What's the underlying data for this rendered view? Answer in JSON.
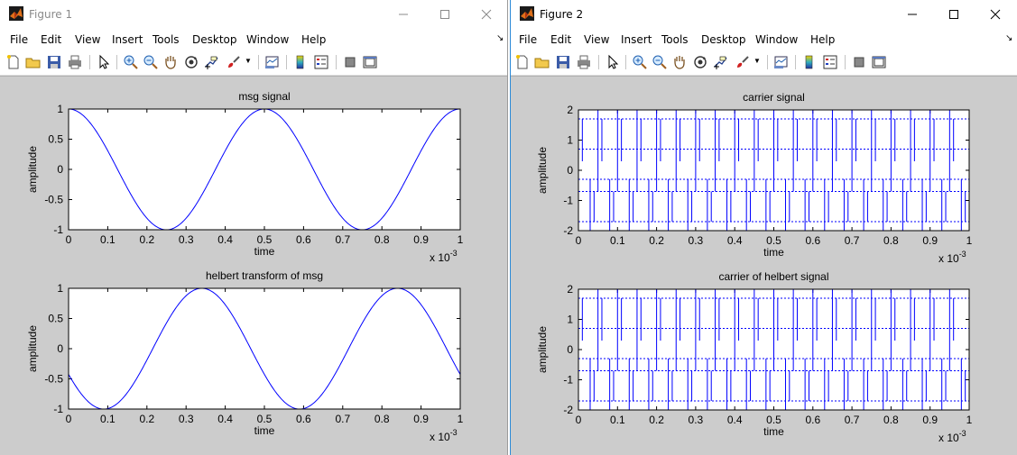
{
  "menu_labels": [
    "File",
    "Edit",
    "View",
    "Insert",
    "Tools",
    "Desktop",
    "Window",
    "Help"
  ],
  "colors": {
    "signal": "#0000ff",
    "figure_background": "#cccccc",
    "plot_background": "#ffffff"
  },
  "windows": [
    {
      "title": "Figure 1",
      "charts": [
        {
          "type": "line",
          "title": "msg signal",
          "xlabel": "time",
          "ylabel": "amplitude",
          "xlim": [
            0,
            1
          ],
          "ylim": [
            -1,
            1
          ],
          "x_exponent": "x 10-3",
          "xticks": [
            "0",
            "0.1",
            "0.2",
            "0.3",
            "0.4",
            "0.5",
            "0.6",
            "0.7",
            "0.8",
            "0.9",
            "1"
          ],
          "yticks": [
            "1",
            "0.5",
            "0",
            "-0.5",
            "-1"
          ],
          "grid": false
        },
        {
          "type": "line",
          "title": "helbert transform of msg",
          "xlabel": "time",
          "ylabel": "amplitude",
          "xlim": [
            0,
            1
          ],
          "ylim": [
            -1,
            1
          ],
          "x_exponent": "x 10-3",
          "xticks": [
            "0",
            "0.1",
            "0.2",
            "0.3",
            "0.4",
            "0.5",
            "0.6",
            "0.7",
            "0.8",
            "0.9",
            "1"
          ],
          "yticks": [
            "1",
            "0.5",
            "0",
            "-0.5",
            "-1"
          ],
          "grid": false
        }
      ]
    },
    {
      "title": "Figure 2",
      "charts": [
        {
          "type": "line",
          "title": "carrier signal",
          "xlabel": "time",
          "ylabel": "amplitude",
          "xlim": [
            0,
            1
          ],
          "ylim": [
            -2,
            2
          ],
          "x_exponent": "x 10-3",
          "xticks": [
            "0",
            "0.1",
            "0.2",
            "0.3",
            "0.4",
            "0.5",
            "0.6",
            "0.7",
            "0.8",
            "0.9",
            "1"
          ],
          "yticks": [
            "2",
            "1",
            "0",
            "-1",
            "-2"
          ],
          "grid": false
        },
        {
          "type": "line",
          "title": "carrier of helbert signal",
          "xlabel": "time",
          "ylabel": "amplitude",
          "xlim": [
            0,
            1
          ],
          "ylim": [
            -2,
            2
          ],
          "x_exponent": "x 10-3",
          "xticks": [
            "0",
            "0.1",
            "0.2",
            "0.3",
            "0.4",
            "0.5",
            "0.6",
            "0.7",
            "0.8",
            "0.9",
            "1"
          ],
          "yticks": [
            "2",
            "1",
            "0",
            "-1",
            "-2"
          ],
          "grid": false
        }
      ]
    }
  ],
  "chart_data": [
    {
      "type": "line",
      "title": "msg signal",
      "xlabel": "time",
      "ylabel": "amplitude",
      "xlim": [
        0,
        0.001
      ],
      "ylim": [
        -1,
        1
      ],
      "series": [
        {
          "x": [
            0,
            0.000125,
            0.00025,
            0.000375,
            0.0005,
            0.000625,
            0.00075,
            0.000875,
            0.001
          ],
          "y": [
            1,
            0,
            -1,
            0,
            1,
            0,
            -1,
            0,
            1
          ]
        }
      ]
    },
    {
      "type": "line",
      "title": "helbert transform of msg",
      "xlabel": "time",
      "ylabel": "amplitude",
      "xlim": [
        0,
        0.001
      ],
      "ylim": [
        -1,
        1
      ],
      "series": [
        {
          "x": [
            0,
            9e-05,
            0.00034,
            0.00059,
            0.00084,
            0.001
          ],
          "y": [
            -0.47,
            -1,
            1,
            -1,
            1,
            -0.47
          ]
        }
      ]
    },
    {
      "type": "line",
      "title": "carrier signal",
      "xlabel": "time",
      "ylabel": "amplitude",
      "xlim": [
        0,
        0.001
      ],
      "ylim": [
        -2,
        2
      ],
      "series": [
        {
          "envelope_max": [
            2,
            1.7,
            0.7,
            -0.3,
            -0.7
          ],
          "envelope_min": [
            -2,
            -1.7,
            -0.7,
            0.3,
            0.7
          ],
          "cycles": 100
        }
      ]
    },
    {
      "type": "line",
      "title": "carrier of helbert signal",
      "xlabel": "time",
      "ylabel": "amplitude",
      "xlim": [
        0,
        0.001
      ],
      "ylim": [
        -2,
        2
      ],
      "series": [
        {
          "envelope_max": [
            2,
            1.7,
            0.7,
            -0.3,
            -0.7
          ],
          "envelope_min": [
            -2,
            -1.7,
            -0.7,
            0.3,
            0.7
          ],
          "cycles": 100
        }
      ]
    }
  ]
}
